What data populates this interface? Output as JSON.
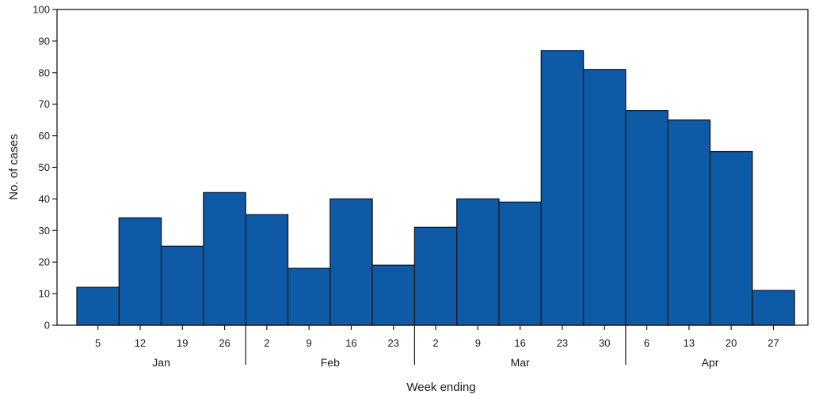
{
  "chart_data": {
    "type": "bar",
    "xlabel": "Week ending",
    "ylabel": "No. of cases",
    "ylim": [
      0,
      100
    ],
    "yticks": [
      0,
      10,
      20,
      30,
      40,
      50,
      60,
      70,
      80,
      90,
      100
    ],
    "bar_color": "#0f5aa6",
    "categories": [
      "5",
      "12",
      "19",
      "26",
      "2",
      "9",
      "16",
      "23",
      "2",
      "9",
      "16",
      "23",
      "30",
      "6",
      "13",
      "20",
      "27"
    ],
    "values": [
      12,
      34,
      25,
      42,
      35,
      18,
      40,
      19,
      31,
      40,
      39,
      87,
      81,
      68,
      65,
      55,
      11
    ],
    "months": [
      {
        "label": "Jan",
        "start": 0,
        "count": 4
      },
      {
        "label": "Feb",
        "start": 4,
        "count": 4
      },
      {
        "label": "Mar",
        "start": 8,
        "count": 5
      },
      {
        "label": "Apr",
        "start": 13,
        "count": 4
      }
    ],
    "grid": false,
    "legend": "none"
  }
}
